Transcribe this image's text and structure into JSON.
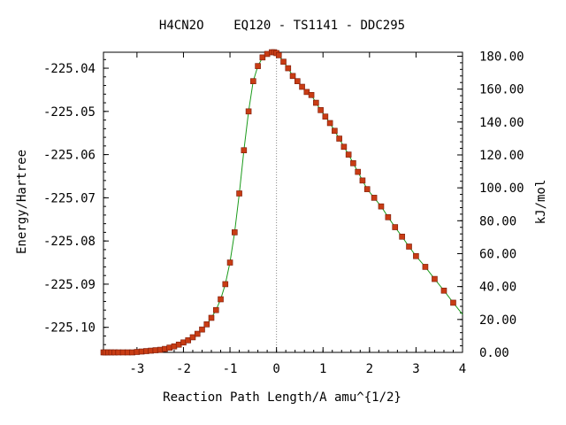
{
  "chart_data": {
    "type": "line",
    "title": "H4CN2O    EQ120 - TS1141 - DDC295",
    "xlabel": "Reaction Path Length/A amu^{1/2}",
    "ylabel": "Energy/Hartree",
    "y2label": "kJ/mol",
    "xlim": [
      -3.72,
      4.0
    ],
    "ylim": [
      -225.1058,
      -225.0363
    ],
    "y2lim": [
      0.0,
      182.4
    ],
    "x_ticks": [
      -3,
      -2,
      -1,
      0,
      1,
      2,
      3,
      4
    ],
    "x_tick_labels": [
      "-3",
      "-2",
      "-1",
      "0",
      "1",
      "2",
      "3",
      "4"
    ],
    "y_ticks": [
      -225.04,
      -225.05,
      -225.06,
      -225.07,
      -225.08,
      -225.09,
      -225.1
    ],
    "y_tick_labels": [
      "-225.04",
      "-225.05",
      "-225.06",
      "-225.07",
      "-225.08",
      "-225.09",
      "-225.10"
    ],
    "y2_ticks": [
      0,
      20,
      40,
      60,
      80,
      100,
      120,
      140,
      160,
      180
    ],
    "y2_tick_labels": [
      "0.00",
      "20.00",
      "40.00",
      "60.00",
      "80.00",
      "100.00",
      "120.00",
      "140.00",
      "160.00",
      "180.00"
    ],
    "ts_marker_x": 0.0,
    "line_color": "#1a9a1a",
    "marker_color": "#c83c14",
    "series": [
      {
        "x": [
          -3.72,
          -3.68,
          -3.62,
          -3.55,
          -3.48,
          -3.4,
          -3.3,
          -3.2,
          -3.1,
          -3.0,
          -2.9,
          -2.8,
          -2.7,
          -2.6,
          -2.5,
          -2.4,
          -2.3,
          -2.2,
          -2.1,
          -2.0,
          -1.9,
          -1.8,
          -1.7,
          -1.6,
          -1.5,
          -1.4,
          -1.3,
          -1.2,
          -1.1,
          -1.0,
          -0.9,
          -0.8,
          -0.7,
          -0.6,
          -0.5,
          -0.4,
          -0.3,
          -0.2,
          -0.1,
          -0.05,
          0.0,
          0.05,
          0.15,
          0.25,
          0.35,
          0.45,
          0.55,
          0.65,
          0.75,
          0.85,
          0.95,
          1.05,
          1.15,
          1.25,
          1.35,
          1.45,
          1.55,
          1.65,
          1.75,
          1.85,
          1.95,
          2.1,
          2.25,
          2.4,
          2.55,
          2.7,
          2.85,
          3.0,
          3.2,
          3.4,
          3.6,
          3.8,
          4.0
        ],
        "y": [
          -225.1058,
          -225.1058,
          -225.1058,
          -225.1058,
          -225.1058,
          -225.1058,
          -225.1058,
          -225.1058,
          -225.1058,
          -225.1057,
          -225.1056,
          -225.1055,
          -225.1054,
          -225.1053,
          -225.1052,
          -225.105,
          -225.1047,
          -225.1044,
          -225.104,
          -225.1035,
          -225.103,
          -225.1023,
          -225.1015,
          -225.1005,
          -225.0993,
          -225.0978,
          -225.096,
          -225.0935,
          -225.09,
          -225.085,
          -225.078,
          -225.069,
          -225.059,
          -225.05,
          -225.043,
          -225.0395,
          -225.0375,
          -225.0367,
          -225.0363,
          -225.0363,
          -225.0365,
          -225.037,
          -225.0385,
          -225.04,
          -225.0418,
          -225.043,
          -225.0443,
          -225.0455,
          -225.0462,
          -225.048,
          -225.0497,
          -225.0512,
          -225.0527,
          -225.0545,
          -225.0563,
          -225.0582,
          -225.06,
          -225.062,
          -225.064,
          -225.066,
          -225.068,
          -225.07,
          -225.072,
          -225.0745,
          -225.0768,
          -225.079,
          -225.0813,
          -225.0835,
          -225.086,
          -225.0888,
          -225.0915,
          -225.0943,
          -225.097
        ],
        "marker_x": [
          -3.72,
          -3.68,
          -3.62,
          -3.55,
          -3.48,
          -3.4,
          -3.3,
          -3.2,
          -3.1,
          -3.0,
          -2.9,
          -2.8,
          -2.7,
          -2.6,
          -2.5,
          -2.4,
          -2.3,
          -2.2,
          -2.1,
          -2.0,
          -1.9,
          -1.8,
          -1.7,
          -1.6,
          -1.5,
          -1.4,
          -1.3,
          -1.2,
          -1.1,
          -1.0,
          -0.9,
          -0.8,
          -0.7,
          -0.6,
          -0.5,
          -0.4,
          -0.3,
          -0.2,
          -0.1,
          -0.05,
          0.0,
          0.05,
          0.15,
          0.25,
          0.35,
          0.45,
          0.55,
          0.65,
          0.75,
          0.85,
          0.95,
          1.05,
          1.15,
          1.25,
          1.35,
          1.45,
          1.55,
          1.65,
          1.75,
          1.85,
          1.95,
          2.1,
          2.25,
          2.4,
          2.55,
          2.7,
          2.85,
          3.0,
          3.2,
          3.4,
          3.6,
          3.8
        ]
      }
    ]
  }
}
